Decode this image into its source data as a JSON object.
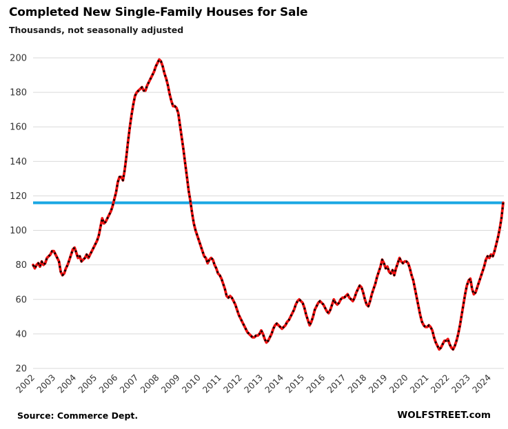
{
  "header": {
    "title": "Completed New Single-Family Houses for Sale",
    "subtitle": "Thousands, not seasonally adjusted"
  },
  "footer": {
    "source": "Source: Commerce Dept.",
    "brand": "WOLFSTREET.com"
  },
  "chart_data": {
    "type": "line",
    "title": "Completed New Single-Family Houses for Sale",
    "ylabel": "Thousands, not seasonally adjusted",
    "xlabel": "",
    "legend_position": "none",
    "grid": "horizontal",
    "grid_color": "#d9d9d9",
    "x_unit": "monthly",
    "x_start": {
      "year": 2002,
      "month": 1
    },
    "x_end": {
      "year": 2024,
      "month": 9
    },
    "x_tick_years": [
      2002,
      2003,
      2004,
      2005,
      2006,
      2007,
      2008,
      2009,
      2010,
      2011,
      2012,
      2013,
      2014,
      2015,
      2016,
      2017,
      2018,
      2019,
      2020,
      2021,
      2022,
      2023,
      2024
    ],
    "ylim": [
      20,
      200
    ],
    "y_ticks": [
      20,
      40,
      60,
      80,
      100,
      120,
      140,
      160,
      180,
      200
    ],
    "reference_line": {
      "value": 116,
      "color": "#1aa7e3",
      "width": 4
    },
    "series": [
      {
        "name": "Completed new single-family houses for sale (thousands, NSA)",
        "line_color": "#ee1111",
        "marker_color": "#000000",
        "marker_style": "black-square-dashes-on-red-line",
        "values": [
          80,
          78,
          80,
          81,
          79,
          82,
          80,
          81,
          84,
          85,
          86,
          88,
          88,
          86,
          84,
          82,
          76,
          74,
          75,
          78,
          80,
          83,
          86,
          89,
          90,
          87,
          84,
          85,
          82,
          83,
          84,
          86,
          84,
          86,
          88,
          90,
          92,
          94,
          97,
          102,
          107,
          104,
          105,
          107,
          109,
          111,
          114,
          118,
          122,
          128,
          131,
          131,
          129,
          135,
          143,
          152,
          160,
          167,
          173,
          178,
          180,
          181,
          182,
          183,
          181,
          181,
          184,
          186,
          188,
          190,
          192,
          195,
          197,
          199,
          198,
          195,
          191,
          188,
          184,
          179,
          175,
          172,
          172,
          171,
          168,
          161,
          154,
          147,
          139,
          131,
          123,
          117,
          110,
          104,
          100,
          97,
          94,
          91,
          88,
          85,
          84,
          81,
          83,
          84,
          83,
          80,
          78,
          75,
          74,
          72,
          69,
          66,
          62,
          61,
          62,
          61,
          59,
          57,
          54,
          51,
          49,
          47,
          45,
          43,
          41,
          40,
          39,
          38,
          38,
          39,
          39,
          40,
          42,
          40,
          37,
          35,
          36,
          38,
          40,
          43,
          45,
          46,
          45,
          44,
          43,
          44,
          45,
          47,
          48,
          50,
          52,
          54,
          57,
          59,
          60,
          59,
          58,
          55,
          51,
          48,
          45,
          47,
          50,
          54,
          56,
          58,
          59,
          58,
          57,
          55,
          53,
          52,
          54,
          57,
          60,
          58,
          57,
          58,
          60,
          61,
          61,
          62,
          63,
          61,
          60,
          59,
          61,
          64,
          66,
          68,
          67,
          64,
          60,
          57,
          56,
          59,
          63,
          66,
          69,
          73,
          76,
          79,
          83,
          81,
          78,
          79,
          76,
          75,
          77,
          74,
          78,
          81,
          84,
          82,
          81,
          82,
          82,
          81,
          78,
          74,
          71,
          66,
          61,
          56,
          51,
          47,
          45,
          44,
          44,
          45,
          44,
          42,
          38,
          35,
          33,
          31,
          32,
          34,
          36,
          36,
          37,
          34,
          32,
          31,
          33,
          36,
          40,
          45,
          51,
          57,
          63,
          68,
          71,
          72,
          66,
          63,
          64,
          67,
          70,
          73,
          76,
          79,
          83,
          85,
          84,
          86,
          85,
          88,
          92,
          96,
          101,
          107,
          116
        ]
      }
    ]
  }
}
